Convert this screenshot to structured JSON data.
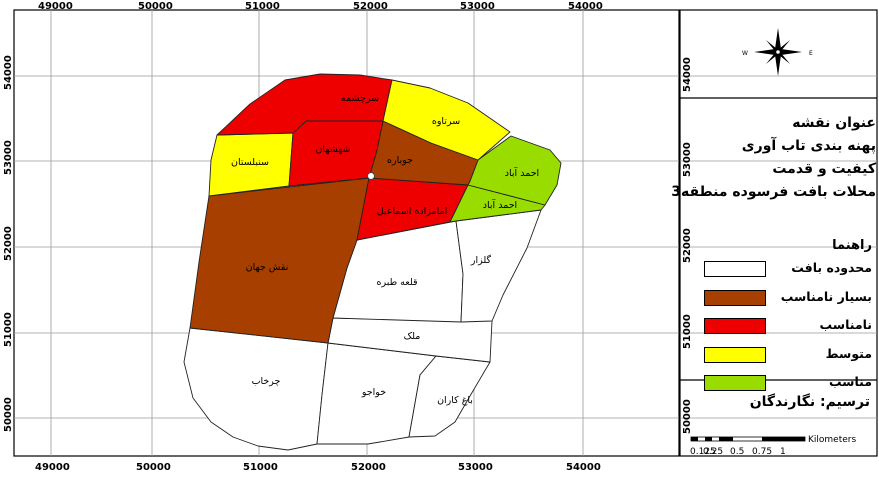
{
  "axes": {
    "x_ticks": [
      "49000",
      "50000",
      "51000",
      "52000",
      "53000",
      "54000"
    ],
    "y_ticks": [
      "54000",
      "53000",
      "52000",
      "51000",
      "50000"
    ],
    "y_right_ticks": [
      "54000",
      "53000",
      "52000",
      "51000",
      "50000"
    ]
  },
  "colors": {
    "very_poor": "#a63f00",
    "poor": "#ee0000",
    "medium": "#ffff00",
    "good": "#99dd00",
    "boundary": "#ffffff"
  },
  "neighborhoods": [
    {
      "id": "sarcheshmeh",
      "label": "سرچشمه",
      "class": "poor"
    },
    {
      "id": "sartaveh",
      "label": "سرتاوه",
      "class": "medium"
    },
    {
      "id": "sonbolestan",
      "label": "سنبلستان",
      "class": "medium"
    },
    {
      "id": "shahshahan",
      "label": "شهشهان",
      "class": "poor"
    },
    {
      "id": "jubareh",
      "label": "جوباره",
      "class": "very_poor"
    },
    {
      "id": "ahmadabad-1",
      "label": "احمد آباد",
      "class": "good"
    },
    {
      "id": "ahmadabad-2",
      "label": "احمد آباد",
      "class": "good"
    },
    {
      "id": "emamzadeh",
      "label": "امامزاده اسماعیل",
      "class": "poor"
    },
    {
      "id": "naghsh-jahan",
      "label": "نقش جهان",
      "class": "very_poor"
    },
    {
      "id": "ghaleh-tabareh",
      "label": "قلعه طبره",
      "class": "boundary"
    },
    {
      "id": "golzar",
      "label": "گلزار",
      "class": "boundary"
    },
    {
      "id": "malek",
      "label": "ملک",
      "class": "boundary"
    },
    {
      "id": "charkhab",
      "label": "چرخاب",
      "class": "boundary"
    },
    {
      "id": "khajoo",
      "label": "خواجو",
      "class": "boundary"
    },
    {
      "id": "bagh-karan",
      "label": "باغ کاران",
      "class": "boundary"
    }
  ],
  "north_arrow": {
    "w": "W",
    "e": "E",
    "icon": "compass-rose-icon"
  },
  "map_title": {
    "line1": "عنوان نقشه",
    "line2": "پهنه بندی تاب آوری",
    "line3": "کیفیت و قدمت",
    "line4": "محلات بافت فرسوده منطقه3"
  },
  "legend": {
    "title": "راهنما",
    "items": [
      {
        "label": "محدوده بافت",
        "color": "#ffffff"
      },
      {
        "label": "بسیار نامناسب",
        "color": "#a63f00"
      },
      {
        "label": "نامناسب",
        "color": "#ee0000"
      },
      {
        "label": "متوسط",
        "color": "#ffff00"
      },
      {
        "label": "مناسب",
        "color": "#99dd00"
      }
    ]
  },
  "credit": "ترسیم: نگارندگان",
  "scale_bar": {
    "unit": "Kilometers",
    "labels": [
      "0.125",
      "0.25",
      "0.5",
      "0.75",
      "1"
    ]
  }
}
